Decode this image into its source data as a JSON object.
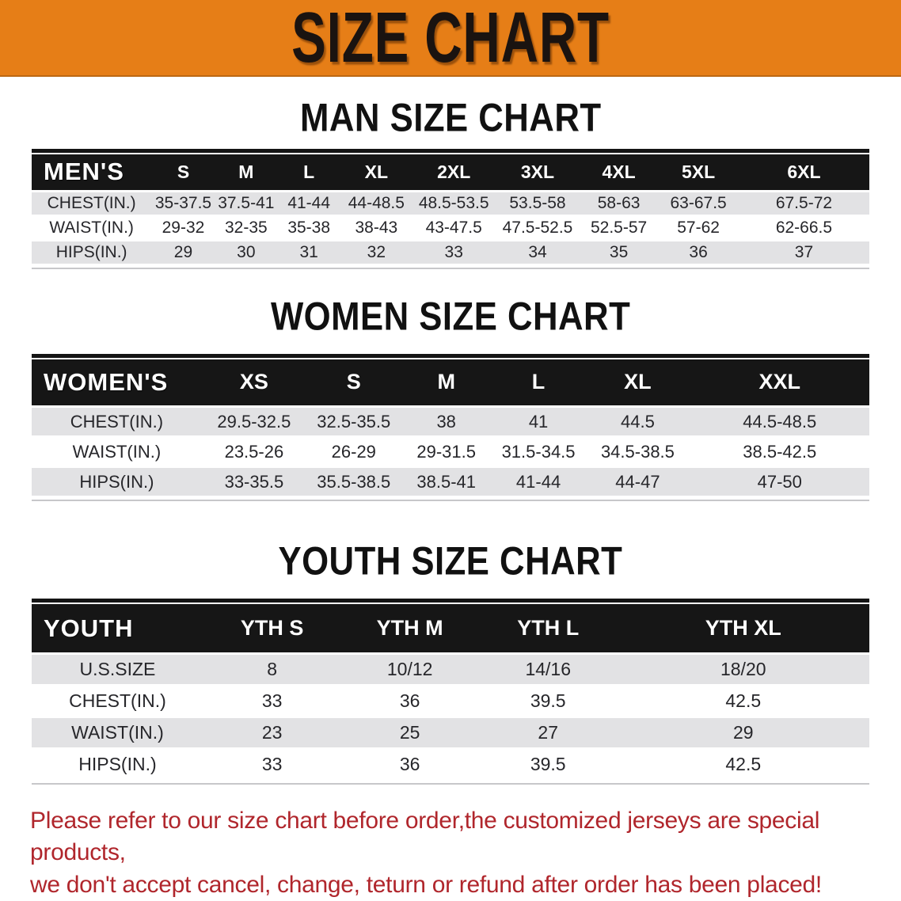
{
  "banner": {
    "title": "SIZE CHART"
  },
  "sections": {
    "men": {
      "heading": "MAN SIZE CHART"
    },
    "women": {
      "heading": "WOMEN SIZE CHART"
    },
    "youth": {
      "heading": "YOUTH SIZE CHART"
    }
  },
  "tables": [
    {
      "id": "men",
      "label": "MEN'S",
      "columns": [
        "S",
        "M",
        "L",
        "XL",
        "2XL",
        "3XL",
        "4XL",
        "5XL",
        "6XL"
      ],
      "col_widths": [
        "14.3%",
        "7.6%",
        "7.4%",
        "7.6%",
        "8.5%",
        "10%",
        "10%",
        "9.4%",
        "9.6%",
        "15.6%"
      ],
      "rows": [
        {
          "label": "CHEST(IN.)",
          "values": [
            "35-37.5",
            "37.5-41",
            "41-44",
            "44-48.5",
            "48.5-53.5",
            "53.5-58",
            "58-63",
            "63-67.5",
            "67.5-72"
          ]
        },
        {
          "label": "WAIST(IN.)",
          "values": [
            "29-32",
            "32-35",
            "35-38",
            "38-43",
            "43-47.5",
            "47.5-52.5",
            "52.5-57",
            "57-62",
            "62-66.5"
          ]
        },
        {
          "label": "HIPS(IN.)",
          "values": [
            "29",
            "30",
            "31",
            "32",
            "33",
            "34",
            "35",
            "36",
            "37"
          ]
        }
      ]
    },
    {
      "id": "women",
      "label": "WOMEN'S",
      "columns": [
        "XS",
        "S",
        "M",
        "L",
        "XL",
        "XXL"
      ],
      "col_widths": [
        "20.3%",
        "12.5%",
        "11.3%",
        "10.8%",
        "11.2%",
        "12.5%",
        "21.4%"
      ],
      "rows": [
        {
          "label": "CHEST(IN.)",
          "values": [
            "29.5-32.5",
            "32.5-35.5",
            "38",
            "41",
            "44.5",
            "44.5-48.5"
          ]
        },
        {
          "label": "WAIST(IN.)",
          "values": [
            "23.5-26",
            "26-29",
            "29-31.5",
            "31.5-34.5",
            "34.5-38.5",
            "38.5-42.5"
          ]
        },
        {
          "label": "HIPS(IN.)",
          "values": [
            "33-35.5",
            "35.5-38.5",
            "38.5-41",
            "41-44",
            "44-47",
            "47-50"
          ]
        }
      ]
    },
    {
      "id": "youth",
      "label": "YOUTH",
      "columns": [
        "YTH S",
        "YTH M",
        "YTH L",
        "YTH XL"
      ],
      "col_widths": [
        "20.5%",
        "16.4%",
        "16.5%",
        "16.5%",
        "30.1%"
      ],
      "rows": [
        {
          "label": "U.S.SIZE",
          "values": [
            "8",
            "10/12",
            "14/16",
            "18/20"
          ]
        },
        {
          "label": "CHEST(IN.)",
          "values": [
            "33",
            "36",
            "39.5",
            "42.5"
          ]
        },
        {
          "label": "WAIST(IN.)",
          "values": [
            "23",
            "25",
            "27",
            "29"
          ]
        },
        {
          "label": "HIPS(IN.)",
          "values": [
            "33",
            "36",
            "39.5",
            "42.5"
          ]
        }
      ]
    }
  ],
  "notice": {
    "line1": "Please refer to our size chart before order,the customized jerseys are special products,",
    "line2": "we don't accept cancel, change, teturn or refund after order has been placed!"
  },
  "colors": {
    "banner_bg": "#e67e17",
    "header_bar_bg": "#161616",
    "header_text": "#ffffff",
    "row_stripe": "#e2e2e4",
    "notice_text": "#b0262c"
  }
}
